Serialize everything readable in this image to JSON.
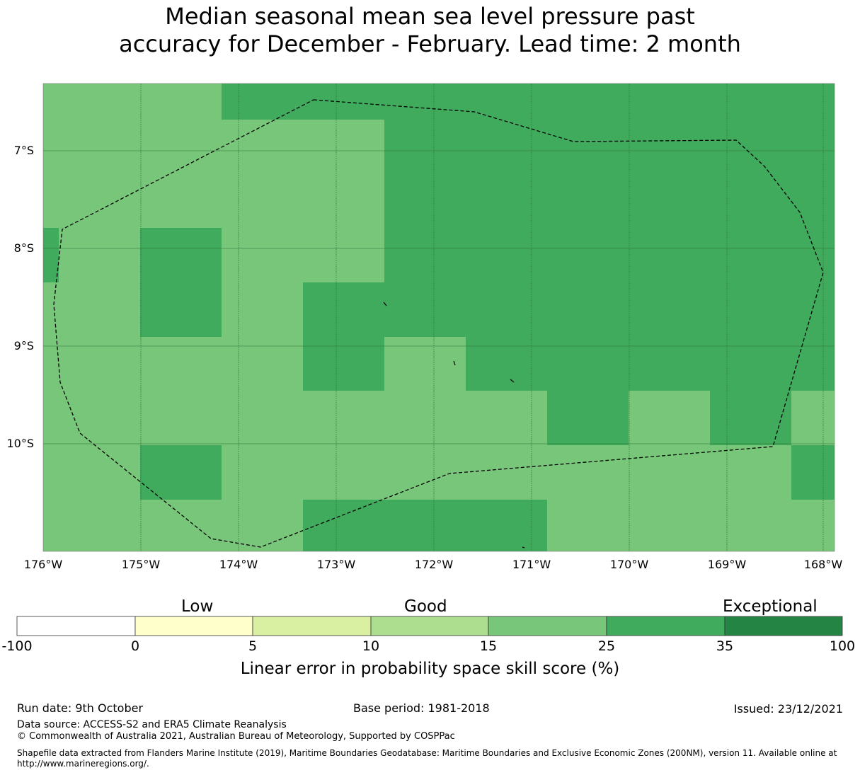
{
  "title": {
    "line1": "Median seasonal mean sea level pressure past",
    "line2": "accuracy for December - February. Lead time: 2 month"
  },
  "map": {
    "x_ticks": [
      "176°W",
      "175°W",
      "174°W",
      "173°W",
      "172°W",
      "171°W",
      "170°W",
      "169°W",
      "168°W"
    ],
    "y_ticks": [
      "7°S",
      "8°S",
      "9°S",
      "10°S"
    ],
    "lon_range": [
      -176,
      -167.9
    ],
    "lat_range": [
      -11.1,
      -6.3
    ],
    "grid": true,
    "boundary": "dashed EEZ outline",
    "cell_colors": {
      "15-25": "#78c679",
      "25-35": "#41ab5d"
    }
  },
  "colorbar": {
    "categories": [
      "Low",
      "Good",
      "Exceptional"
    ],
    "ticks": [
      "-100",
      "0",
      "5",
      "10",
      "15",
      "25",
      "35",
      "100"
    ],
    "colors": [
      "#ffffff",
      "#ffffcc",
      "#d9f0a3",
      "#addd8e",
      "#78c679",
      "#41ab5d",
      "#238443"
    ],
    "label": "Linear error in probability space skill score (%)"
  },
  "footer": {
    "run_date": "Run date: 9th October",
    "base_period": "Base period: 1981-2018",
    "issued": "Issued: 23/12/2021",
    "data_source": "Data source: ACCESS-S2 and ERA5 Climate Reanalysis",
    "copyright": "© Commonwealth of Australia 2021, Australian Bureau of Meteorology, Supported by COSPPac",
    "shapefile_line1": "Shapefile data extracted from Flanders Marine Institute (2019), Maritime Boundaries Geodatabase: Maritime Boundaries and Exclusive Economic Zones (200NM), version 11. Available online at",
    "shapefile_line2": "http://www.marineregions.org/."
  }
}
